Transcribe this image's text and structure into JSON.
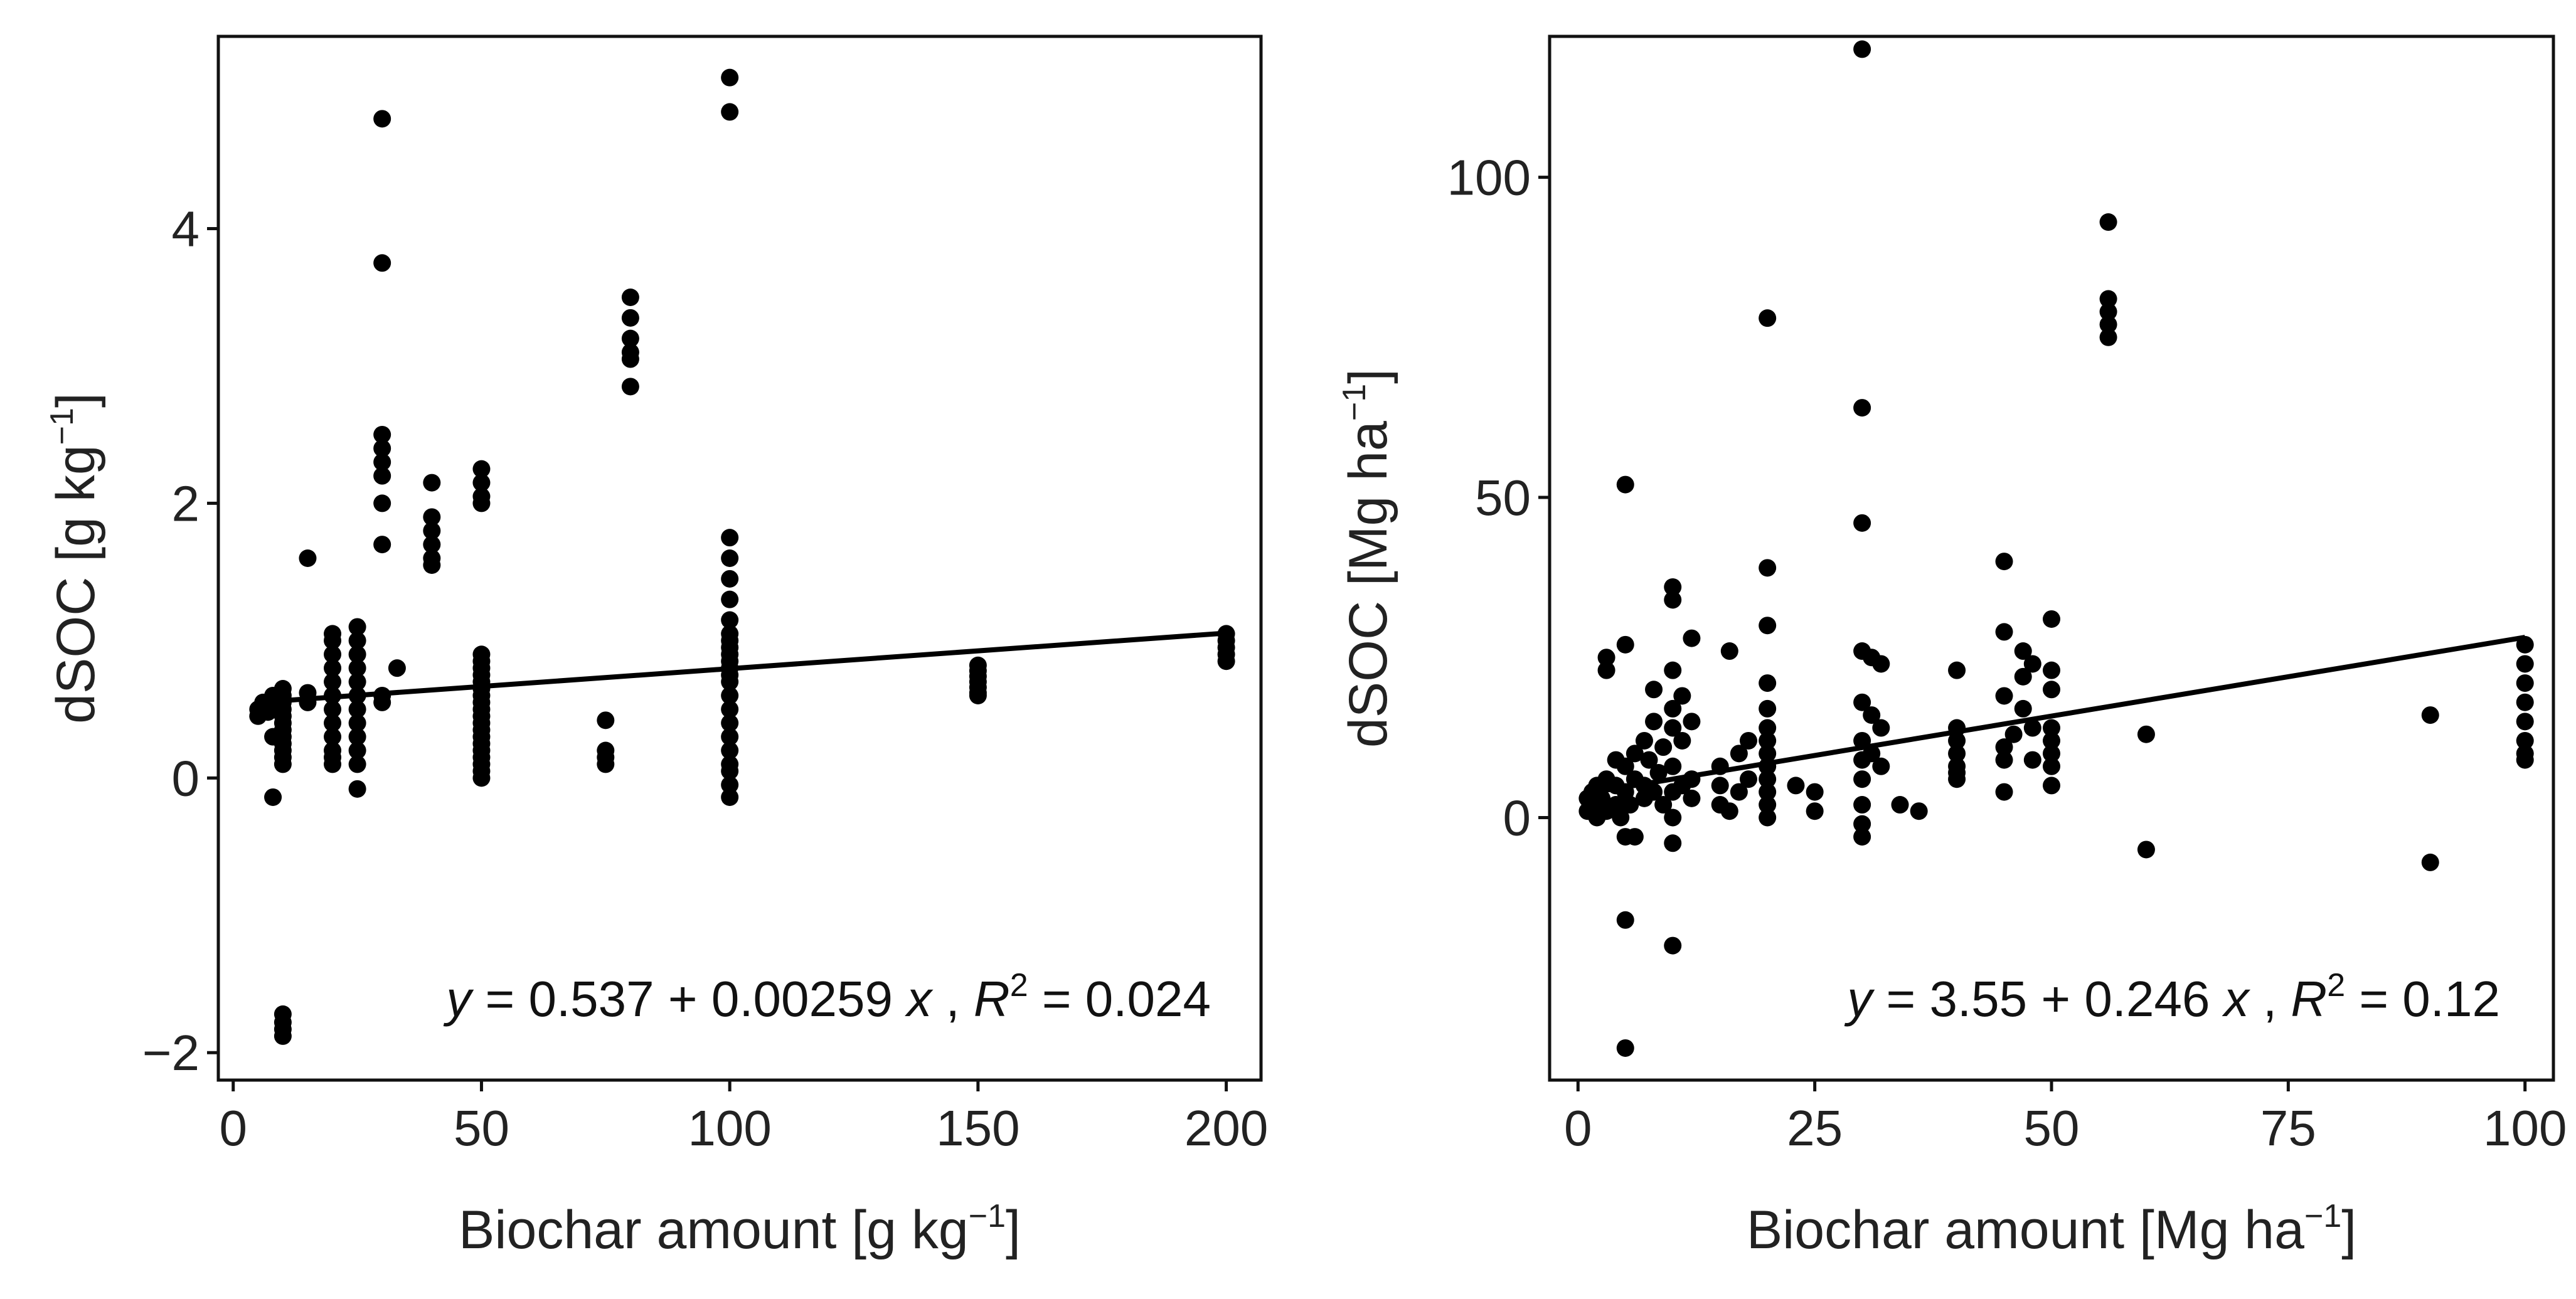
{
  "chart_data": [
    {
      "type": "scatter",
      "xlabel": "Biochar amount [g kg",
      "xlabel_sup": "−1",
      "xlabel_tail": "]",
      "ylabel": "dSOC [g kg",
      "ylabel_sup": "−1",
      "ylabel_tail": "]",
      "xlim": [
        -3,
        207
      ],
      "ylim": [
        -2.2,
        5.4
      ],
      "xticks": [
        0,
        50,
        100,
        150,
        200
      ],
      "xtick_labels": [
        "0",
        "50",
        "100",
        "150",
        "200"
      ],
      "yticks": [
        -2,
        0,
        2,
        4
      ],
      "ytick_labels": [
        "−2",
        "0",
        "2",
        "4"
      ],
      "fit": {
        "intercept": 0.537,
        "slope": 0.00259,
        "x_range": [
          5,
          200
        ]
      },
      "equation": {
        "y": "y",
        "eq": " = 0.537",
        "plus": " + ",
        "coef": "0.00259 ",
        "x": "x",
        "comma": " , ",
        "r": "R",
        "r_sup": "2",
        "r_val": " = 0.024"
      },
      "points": [
        [
          5,
          0.45
        ],
        [
          5,
          0.5
        ],
        [
          6,
          0.55
        ],
        [
          7,
          0.48
        ],
        [
          8,
          0.3
        ],
        [
          8,
          0.6
        ],
        [
          8,
          -0.14
        ],
        [
          8,
          0.5
        ],
        [
          10,
          0.65
        ],
        [
          10,
          0.6
        ],
        [
          10,
          0.55
        ],
        [
          10,
          0.5
        ],
        [
          10,
          0.45
        ],
        [
          10,
          0.4
        ],
        [
          10,
          0.35
        ],
        [
          10,
          0.3
        ],
        [
          10,
          0.25
        ],
        [
          10,
          0.2
        ],
        [
          10,
          0.15
        ],
        [
          10,
          0.1
        ],
        [
          10,
          -1.72
        ],
        [
          10,
          -1.78
        ],
        [
          10,
          -1.83
        ],
        [
          10,
          -1.88
        ],
        [
          15,
          1.6
        ],
        [
          15,
          0.55
        ],
        [
          15,
          0.62
        ],
        [
          20,
          1.05
        ],
        [
          20,
          1.0
        ],
        [
          20,
          0.9
        ],
        [
          20,
          0.8
        ],
        [
          20,
          0.7
        ],
        [
          20,
          0.6
        ],
        [
          20,
          0.5
        ],
        [
          20,
          0.4
        ],
        [
          20,
          0.3
        ],
        [
          20,
          0.2
        ],
        [
          20,
          0.15
        ],
        [
          20,
          0.1
        ],
        [
          25,
          1.1
        ],
        [
          25,
          1.0
        ],
        [
          25,
          0.9
        ],
        [
          25,
          0.8
        ],
        [
          25,
          0.7
        ],
        [
          25,
          0.6
        ],
        [
          25,
          0.5
        ],
        [
          25,
          0.4
        ],
        [
          25,
          0.3
        ],
        [
          25,
          0.2
        ],
        [
          25,
          0.1
        ],
        [
          25,
          -0.08
        ],
        [
          30,
          4.8
        ],
        [
          30,
          3.75
        ],
        [
          30,
          2.5
        ],
        [
          30,
          2.4
        ],
        [
          30,
          2.3
        ],
        [
          30,
          2.2
        ],
        [
          30,
          2.0
        ],
        [
          30,
          1.7
        ],
        [
          30,
          0.6
        ],
        [
          30,
          0.55
        ],
        [
          33,
          0.8
        ],
        [
          40,
          2.15
        ],
        [
          40,
          1.9
        ],
        [
          40,
          1.8
        ],
        [
          40,
          1.7
        ],
        [
          40,
          1.6
        ],
        [
          40,
          1.55
        ],
        [
          50,
          2.25
        ],
        [
          50,
          2.15
        ],
        [
          50,
          2.05
        ],
        [
          50,
          2.0
        ],
        [
          50,
          0.9
        ],
        [
          50,
          0.85
        ],
        [
          50,
          0.8
        ],
        [
          50,
          0.75
        ],
        [
          50,
          0.7
        ],
        [
          50,
          0.65
        ],
        [
          50,
          0.6
        ],
        [
          50,
          0.55
        ],
        [
          50,
          0.5
        ],
        [
          50,
          0.45
        ],
        [
          50,
          0.4
        ],
        [
          50,
          0.35
        ],
        [
          50,
          0.3
        ],
        [
          50,
          0.25
        ],
        [
          50,
          0.2
        ],
        [
          50,
          0.15
        ],
        [
          50,
          0.1
        ],
        [
          50,
          0.05
        ],
        [
          50,
          0.0
        ],
        [
          75,
          0.42
        ],
        [
          75,
          0.2
        ],
        [
          75,
          0.15
        ],
        [
          75,
          0.1
        ],
        [
          80,
          3.5
        ],
        [
          80,
          3.35
        ],
        [
          80,
          3.2
        ],
        [
          80,
          3.1
        ],
        [
          80,
          3.05
        ],
        [
          80,
          2.85
        ],
        [
          100,
          5.1
        ],
        [
          100,
          4.85
        ],
        [
          100,
          1.75
        ],
        [
          100,
          1.6
        ],
        [
          100,
          1.45
        ],
        [
          100,
          1.3
        ],
        [
          100,
          1.15
        ],
        [
          100,
          1.05
        ],
        [
          100,
          1.0
        ],
        [
          100,
          0.95
        ],
        [
          100,
          0.9
        ],
        [
          100,
          0.85
        ],
        [
          100,
          0.8
        ],
        [
          100,
          0.75
        ],
        [
          100,
          0.7
        ],
        [
          100,
          0.6
        ],
        [
          100,
          0.5
        ],
        [
          100,
          0.4
        ],
        [
          100,
          0.3
        ],
        [
          100,
          0.2
        ],
        [
          100,
          0.1
        ],
        [
          100,
          0.05
        ],
        [
          100,
          -0.05
        ],
        [
          100,
          -0.14
        ],
        [
          150,
          0.82
        ],
        [
          150,
          0.78
        ],
        [
          150,
          0.74
        ],
        [
          150,
          0.7
        ],
        [
          150,
          0.66
        ],
        [
          150,
          0.62
        ],
        [
          150,
          0.6
        ],
        [
          200,
          1.05
        ],
        [
          200,
          1.0
        ],
        [
          200,
          0.95
        ],
        [
          200,
          0.9
        ],
        [
          200,
          0.85
        ]
      ]
    },
    {
      "type": "scatter",
      "xlabel": "Biochar amount [Mg ha",
      "xlabel_sup": "−1",
      "xlabel_tail": "]",
      "ylabel": "dSOC [Mg ha",
      "ylabel_sup": "−1",
      "ylabel_tail": "]",
      "xlim": [
        -3,
        103
      ],
      "ylim": [
        -41,
        122
      ],
      "xticks": [
        0,
        25,
        50,
        75,
        100
      ],
      "xtick_labels": [
        "0",
        "25",
        "50",
        "75",
        "100"
      ],
      "yticks": [
        0,
        50,
        100
      ],
      "ytick_labels": [
        "0",
        "50",
        "100"
      ],
      "fit": {
        "intercept": 3.55,
        "slope": 0.246,
        "x_range": [
          1,
          100
        ]
      },
      "equation": {
        "y": "y",
        "eq": " = 3.55",
        "plus": " + ",
        "coef": "0.246 ",
        "x": "x",
        "comma": " , ",
        "r": "R",
        "r_sup": "2",
        "r_val": " = 0.12"
      },
      "points": [
        [
          1,
          3
        ],
        [
          1,
          1
        ],
        [
          1.5,
          4
        ],
        [
          2,
          2
        ],
        [
          2,
          0
        ],
        [
          2,
          5
        ],
        [
          2.5,
          3
        ],
        [
          3,
          1
        ],
        [
          3,
          6
        ],
        [
          3,
          25
        ],
        [
          3,
          23
        ],
        [
          4,
          2
        ],
        [
          4,
          9
        ],
        [
          4,
          5
        ],
        [
          4.5,
          0
        ],
        [
          5,
          52
        ],
        [
          5,
          27
        ],
        [
          5,
          8
        ],
        [
          5,
          4
        ],
        [
          5,
          -3
        ],
        [
          5,
          -16
        ],
        [
          5,
          -36
        ],
        [
          5.5,
          2
        ],
        [
          6,
          -3
        ],
        [
          6,
          6
        ],
        [
          6,
          10
        ],
        [
          7,
          5
        ],
        [
          7,
          12
        ],
        [
          7,
          3
        ],
        [
          7.5,
          9
        ],
        [
          8,
          15
        ],
        [
          8,
          4
        ],
        [
          8,
          20
        ],
        [
          8.5,
          7
        ],
        [
          9,
          11
        ],
        [
          9,
          2
        ],
        [
          10,
          36
        ],
        [
          10,
          34
        ],
        [
          10,
          23
        ],
        [
          10,
          17
        ],
        [
          10,
          14
        ],
        [
          10,
          8
        ],
        [
          10,
          4
        ],
        [
          10,
          0
        ],
        [
          10,
          -4
        ],
        [
          10,
          -20
        ],
        [
          11,
          12
        ],
        [
          11,
          19
        ],
        [
          11,
          5
        ],
        [
          12,
          28
        ],
        [
          12,
          15
        ],
        [
          12,
          6
        ],
        [
          12,
          3
        ],
        [
          15,
          2
        ],
        [
          15,
          5
        ],
        [
          15,
          8
        ],
        [
          16,
          26
        ],
        [
          16,
          1
        ],
        [
          17,
          10
        ],
        [
          17,
          4
        ],
        [
          18,
          12
        ],
        [
          18,
          6
        ],
        [
          20,
          78
        ],
        [
          20,
          39
        ],
        [
          20,
          30
        ],
        [
          20,
          21
        ],
        [
          20,
          17
        ],
        [
          20,
          14
        ],
        [
          20,
          12
        ],
        [
          20,
          10
        ],
        [
          20,
          8
        ],
        [
          20,
          6
        ],
        [
          20,
          4
        ],
        [
          20,
          2
        ],
        [
          20,
          0
        ],
        [
          23,
          5
        ],
        [
          25,
          1
        ],
        [
          25,
          4
        ],
        [
          30,
          120
        ],
        [
          30,
          64
        ],
        [
          30,
          46
        ],
        [
          30,
          26
        ],
        [
          30,
          18
        ],
        [
          30,
          12
        ],
        [
          30,
          9
        ],
        [
          30,
          6
        ],
        [
          30,
          2
        ],
        [
          30,
          -3
        ],
        [
          30,
          -1
        ],
        [
          31,
          25
        ],
        [
          31,
          16
        ],
        [
          31,
          10
        ],
        [
          32,
          24
        ],
        [
          32,
          14
        ],
        [
          32,
          8
        ],
        [
          34,
          2
        ],
        [
          36,
          1
        ],
        [
          40,
          23
        ],
        [
          40,
          14
        ],
        [
          40,
          12
        ],
        [
          40,
          10
        ],
        [
          40,
          8
        ],
        [
          40,
          7
        ],
        [
          40,
          6
        ],
        [
          45,
          40
        ],
        [
          45,
          29
        ],
        [
          45,
          19
        ],
        [
          45,
          11
        ],
        [
          45,
          9
        ],
        [
          45,
          4
        ],
        [
          46,
          13
        ],
        [
          47,
          26
        ],
        [
          47,
          22
        ],
        [
          47,
          17
        ],
        [
          48,
          24
        ],
        [
          48,
          14
        ],
        [
          48,
          9
        ],
        [
          50,
          31
        ],
        [
          50,
          23
        ],
        [
          50,
          20
        ],
        [
          50,
          14
        ],
        [
          50,
          12
        ],
        [
          50,
          10
        ],
        [
          50,
          8
        ],
        [
          50,
          5
        ],
        [
          56,
          93
        ],
        [
          56,
          81
        ],
        [
          56,
          79
        ],
        [
          56,
          77
        ],
        [
          56,
          75
        ],
        [
          60,
          13
        ],
        [
          60,
          -5
        ],
        [
          90,
          16
        ],
        [
          90,
          -7
        ],
        [
          100,
          27
        ],
        [
          100,
          24
        ],
        [
          100,
          21
        ],
        [
          100,
          18
        ],
        [
          100,
          15
        ],
        [
          100,
          12
        ],
        [
          100,
          10
        ],
        [
          100,
          9
        ]
      ]
    }
  ]
}
